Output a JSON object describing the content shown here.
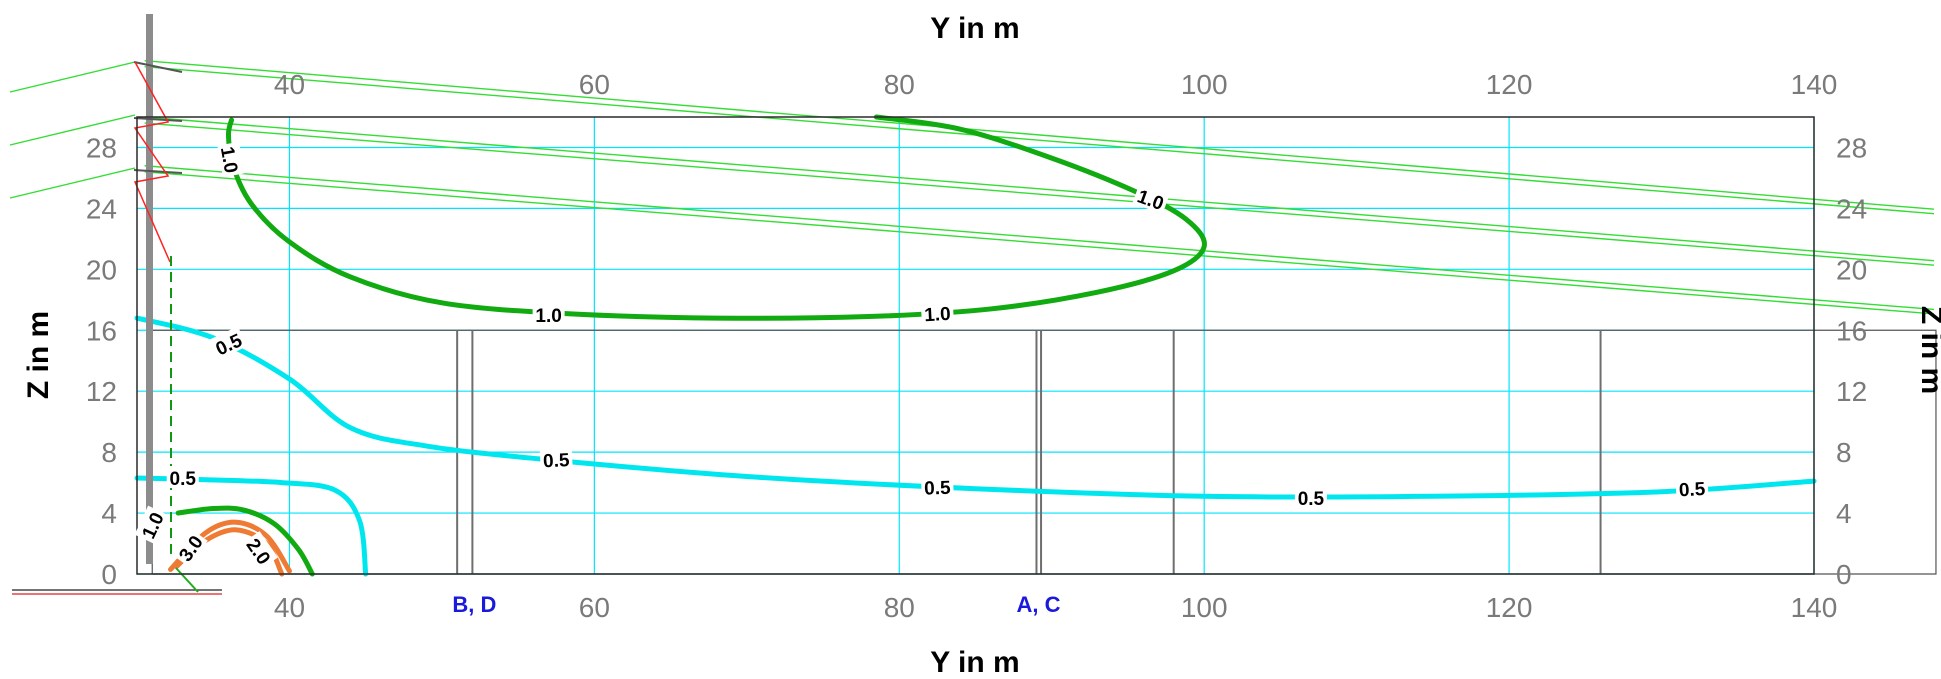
{
  "chart_data": {
    "type": "contour",
    "top_xlabel": "Y in m",
    "bottom_xlabel": "Y in m",
    "left_ylabel": "Z in m",
    "right_ylabel": "Z in m",
    "xlim": [
      30,
      140
    ],
    "ylim": [
      0,
      30
    ],
    "x_ticks": [
      40,
      60,
      80,
      100,
      120,
      140
    ],
    "y_ticks": [
      0,
      4,
      8,
      12,
      16,
      20,
      24,
      28
    ],
    "grid": true,
    "grid_color": "#00e5ff",
    "building_height": 16,
    "wall_positions": [
      51,
      52,
      89,
      89.3,
      98,
      126
    ],
    "section_labels": [
      {
        "text": "B, D",
        "x": 52
      },
      {
        "text": "A, C",
        "x": 89
      }
    ],
    "contours": [
      {
        "level": "1.0",
        "color": "#11aa11",
        "segments": [
          [
            [
              36.2,
              29.8
            ],
            [
              36.0,
              28.8
            ],
            [
              36.3,
              26.8
            ],
            [
              37.5,
              24.3
            ],
            [
              40.0,
              21.8
            ],
            [
              44.0,
              19.5
            ],
            [
              50.0,
              17.8
            ],
            [
              58.0,
              17.1
            ],
            [
              68.0,
              16.8
            ],
            [
              78.0,
              16.9
            ],
            [
              86.0,
              17.4
            ],
            [
              93.0,
              18.5
            ],
            [
              98.0,
              19.9
            ],
            [
              100.0,
              21.5
            ],
            [
              98.8,
              23.3
            ],
            [
              95.5,
              25.1
            ],
            [
              90.0,
              27.3
            ],
            [
              84.0,
              29.2
            ],
            [
              78.5,
              30.0
            ]
          ],
          [
            [
              32.7,
              4.0
            ],
            [
              35.0,
              4.3
            ],
            [
              37.0,
              4.2
            ],
            [
              39.0,
              3.3
            ],
            [
              40.6,
              1.6
            ],
            [
              41.5,
              0.0
            ]
          ]
        ],
        "labels": [
          {
            "text": "1.0",
            "x": 36.1,
            "y": 27.2,
            "angle": 80
          },
          {
            "text": "1.0",
            "x": 96.5,
            "y": 24.6,
            "angle": 20
          },
          {
            "text": "1.0",
            "x": 57.0,
            "y": 17.0,
            "angle": 0
          },
          {
            "text": "1.0",
            "x": 82.5,
            "y": 17.1,
            "angle": -3
          },
          {
            "text": "1.0",
            "x": 31.0,
            "y": 3.2,
            "angle": -65
          }
        ]
      },
      {
        "level": "0.5",
        "color": "#00e6ee",
        "segments": [
          [
            [
              30.0,
              16.8
            ],
            [
              35.0,
              15.5
            ],
            [
              40.0,
              12.8
            ],
            [
              44.0,
              9.6
            ],
            [
              49.0,
              8.4
            ],
            [
              57.0,
              7.5
            ],
            [
              70.0,
              6.4
            ],
            [
              85.0,
              5.6
            ],
            [
              100.0,
              5.1
            ],
            [
              115.0,
              5.1
            ],
            [
              130.0,
              5.4
            ],
            [
              140.0,
              6.1
            ]
          ],
          [
            [
              30.0,
              6.3
            ],
            [
              34.0,
              6.2
            ],
            [
              39.5,
              6.0
            ],
            [
              43.0,
              5.5
            ],
            [
              44.6,
              3.5
            ],
            [
              45.0,
              0.0
            ]
          ]
        ],
        "labels": [
          {
            "text": "0.5",
            "x": 36.0,
            "y": 15.1,
            "angle": -25
          },
          {
            "text": "0.5",
            "x": 57.5,
            "y": 7.5,
            "angle": -3
          },
          {
            "text": "0.5",
            "x": 82.5,
            "y": 5.7,
            "angle": -2
          },
          {
            "text": "0.5",
            "x": 107.0,
            "y": 5.0,
            "angle": 0
          },
          {
            "text": "0.5",
            "x": 132.0,
            "y": 5.6,
            "angle": -3
          },
          {
            "text": "0.5",
            "x": 33.0,
            "y": 6.3,
            "angle": 0
          }
        ]
      },
      {
        "level": "2.0",
        "color": "#ee7a33",
        "segments": [
          [
            [
              32.6,
              0.5
            ],
            [
              34.5,
              2.2
            ],
            [
              36.5,
              2.9
            ],
            [
              38.5,
              2.0
            ],
            [
              39.5,
              0.0
            ]
          ]
        ],
        "labels": [
          {
            "text": "2.0",
            "x": 38.0,
            "y": 1.5,
            "angle": 55
          }
        ]
      },
      {
        "level": "3.0",
        "color": "#ee7a33",
        "segments": [
          [
            [
              32.2,
              0.3
            ],
            [
              34.5,
              2.7
            ],
            [
              36.5,
              3.4
            ],
            [
              38.5,
              2.5
            ],
            [
              40.0,
              0.2
            ]
          ]
        ],
        "labels": [
          {
            "text": "3.0",
            "x": 33.5,
            "y": 1.7,
            "angle": -55
          }
        ]
      }
    ],
    "ray_lines": [
      {
        "start": [
          30.5,
          33.7
        ],
        "end": [
          140,
          24.6
        ]
      },
      {
        "start": [
          30.5,
          33.3
        ],
        "end": [
          140,
          24.3
        ]
      },
      {
        "start": [
          30.5,
          30.0
        ],
        "end": [
          140,
          21.2
        ]
      },
      {
        "start": [
          30.5,
          29.6
        ],
        "end": [
          140,
          20.9
        ]
      },
      {
        "start": [
          30.5,
          26.8
        ],
        "end": [
          140,
          18.0
        ]
      },
      {
        "start": [
          30.5,
          26.4
        ],
        "end": [
          140,
          17.7
        ]
      }
    ]
  }
}
